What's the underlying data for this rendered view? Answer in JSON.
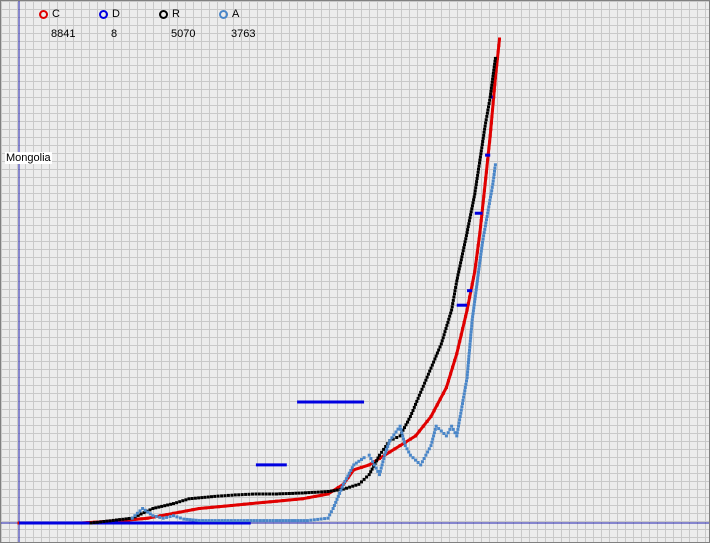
{
  "country": "Mongolia",
  "legend": [
    {
      "key": "C",
      "value": "8841",
      "color": "#e00000"
    },
    {
      "key": "D",
      "value": "8",
      "color": "#0000e0"
    },
    {
      "key": "R",
      "value": "5070",
      "color": "#000000"
    },
    {
      "key": "A",
      "value": "3763",
      "color": "#4a86c8"
    }
  ],
  "chart_data": {
    "type": "line",
    "title": "",
    "xlabel": "",
    "ylabel": "",
    "xlim": [
      0,
      100
    ],
    "ylim": [
      0,
      100
    ],
    "grid": true,
    "legend_position": "top-left",
    "series": [
      {
        "name": "C",
        "color": "#e00000",
        "style": "line-dots",
        "points": [
          [
            0,
            0
          ],
          [
            12,
            0
          ],
          [
            20,
            0.5
          ],
          [
            25,
            1
          ],
          [
            30,
            2
          ],
          [
            35,
            3
          ],
          [
            40,
            3.5
          ],
          [
            45,
            4
          ],
          [
            50,
            4.5
          ],
          [
            55,
            5
          ],
          [
            60,
            6
          ],
          [
            63,
            8
          ],
          [
            65,
            11
          ],
          [
            68,
            12
          ],
          [
            71,
            14
          ],
          [
            74,
            16
          ],
          [
            77,
            18
          ],
          [
            80,
            22
          ],
          [
            83,
            28
          ],
          [
            85,
            35
          ],
          [
            87,
            44
          ],
          [
            88.5,
            52
          ],
          [
            89.5,
            60
          ],
          [
            90.5,
            70
          ],
          [
            91.5,
            80
          ],
          [
            92.5,
            92
          ],
          [
            93.3,
            100
          ]
        ]
      },
      {
        "name": "D",
        "color": "#0000e0",
        "style": "segments",
        "segments": [
          [
            [
              0,
              0
            ],
            [
              45,
              0
            ]
          ],
          [
            [
              46,
              12
            ],
            [
              52,
              12
            ]
          ],
          [
            [
              54,
              25
            ],
            [
              67,
              25
            ]
          ],
          [
            [
              85,
              45
            ],
            [
              87,
              45
            ]
          ],
          [
            [
              87,
              48
            ],
            [
              88,
              48
            ]
          ],
          [
            [
              88.5,
              64
            ],
            [
              90,
              64
            ]
          ],
          [
            [
              90.5,
              76
            ],
            [
              91.5,
              76
            ]
          ],
          [
            [
              91.5,
              88
            ],
            [
              92,
              88
            ]
          ]
        ]
      },
      {
        "name": "R",
        "color": "#000000",
        "style": "dots",
        "points": [
          [
            14,
            0
          ],
          [
            22,
            1
          ],
          [
            26,
            3
          ],
          [
            30,
            4
          ],
          [
            33,
            5
          ],
          [
            38,
            5.5
          ],
          [
            42,
            5.8
          ],
          [
            46,
            6
          ],
          [
            50,
            6
          ],
          [
            55,
            6.2
          ],
          [
            60,
            6.5
          ],
          [
            63,
            7
          ],
          [
            66,
            8
          ],
          [
            68,
            10
          ],
          [
            70,
            14
          ],
          [
            72,
            17
          ],
          [
            74,
            18
          ],
          [
            76,
            22
          ],
          [
            78,
            27
          ],
          [
            80,
            32
          ],
          [
            82,
            37
          ],
          [
            84,
            44
          ],
          [
            85,
            50
          ],
          [
            86,
            55
          ],
          [
            87,
            60
          ],
          [
            88.5,
            68
          ],
          [
            89.5,
            75
          ],
          [
            90.5,
            82
          ],
          [
            91.5,
            88
          ],
          [
            92.5,
            96
          ]
        ]
      },
      {
        "name": "A",
        "color": "#4a86c8",
        "style": "dots",
        "points": [
          [
            22,
            1
          ],
          [
            24,
            3
          ],
          [
            26,
            1.5
          ],
          [
            28,
            1
          ],
          [
            30,
            1.5
          ],
          [
            32,
            0.8
          ],
          [
            35,
            0.5
          ],
          [
            40,
            0.5
          ],
          [
            45,
            0.5
          ],
          [
            50,
            0.5
          ],
          [
            56,
            0.5
          ],
          [
            60,
            1
          ],
          [
            61,
            3
          ],
          [
            63,
            8
          ],
          [
            65,
            12
          ],
          [
            67,
            13.5
          ],
          [
            68,
            14
          ],
          [
            69,
            12
          ],
          [
            70,
            10
          ],
          [
            71,
            14
          ],
          [
            72,
            17
          ],
          [
            74,
            20
          ],
          [
            75,
            16
          ],
          [
            76,
            14
          ],
          [
            78,
            12
          ],
          [
            79,
            14
          ],
          [
            80,
            16
          ],
          [
            81,
            20
          ],
          [
            82,
            19
          ],
          [
            83,
            18
          ],
          [
            84,
            20
          ],
          [
            85,
            18
          ],
          [
            86,
            24
          ],
          [
            87,
            30
          ],
          [
            88,
            42
          ],
          [
            89,
            50
          ],
          [
            90,
            58
          ],
          [
            91,
            64
          ],
          [
            92,
            70
          ],
          [
            92.5,
            74
          ]
        ]
      }
    ]
  }
}
